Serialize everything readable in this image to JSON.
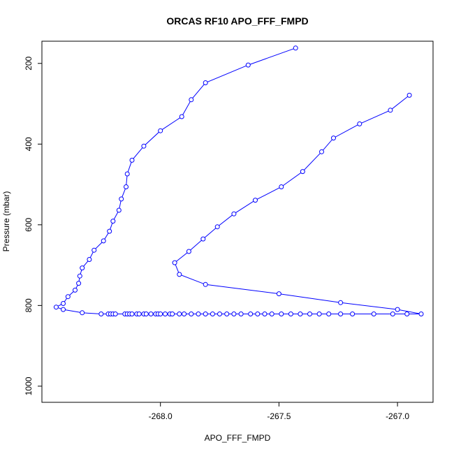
{
  "chart_data": {
    "type": "line",
    "title": "ORCAS RF10 APO_FFF_FMPD",
    "xlabel": "APO_FFF_FMPD",
    "ylabel": "Pressure (mbar)",
    "xlim": [
      -268.5,
      -266.85
    ],
    "ylim": [
      1040,
      145
    ],
    "y_reversed": true,
    "x_ticks": [
      -268.0,
      -267.5,
      -267.0
    ],
    "x_tick_labels": [
      "-268.0",
      "-267.5",
      "-267.0"
    ],
    "y_ticks": [
      200,
      400,
      600,
      800,
      1000
    ],
    "y_tick_labels": [
      "200",
      "400",
      "600",
      "800",
      "1000"
    ],
    "grid": false,
    "series": [
      {
        "color": "#0000ff",
        "marker": "open-circle",
        "x": [
          -267.43,
          -267.63,
          -267.81,
          -267.87,
          -267.91,
          -268.0,
          -268.07,
          -268.12,
          -268.14,
          -268.145,
          -268.165,
          -268.175,
          -268.2,
          -268.215,
          -268.24,
          -268.28,
          -268.3,
          -268.33,
          -268.34,
          -268.345,
          -268.36,
          -268.39,
          -268.41,
          -268.44,
          -268.41,
          -268.33,
          -268.25,
          -268.22,
          -268.21,
          -268.2,
          -268.19,
          -268.15,
          -268.14,
          -268.13,
          -268.12,
          -268.1,
          -268.09,
          -268.07,
          -268.06,
          -268.04,
          -268.02,
          -268.01,
          -268.0,
          -267.98,
          -267.96,
          -267.95,
          -267.92,
          -267.9,
          -267.87,
          -267.84,
          -267.81,
          -267.78,
          -267.75,
          -267.72,
          -267.69,
          -267.66,
          -267.62,
          -267.59,
          -267.56,
          -267.53,
          -267.49,
          -267.45,
          -267.41,
          -267.37,
          -267.33,
          -267.29,
          -267.24,
          -267.19,
          -267.1,
          -267.02,
          -266.96,
          -266.9,
          -267.0,
          -267.24,
          -267.5,
          -267.81,
          -267.92,
          -267.94,
          -267.88,
          -267.82,
          -267.76,
          -267.69,
          -267.6,
          -267.49,
          -267.4,
          -267.32,
          -267.27,
          -267.16,
          -267.03,
          -266.95
        ],
        "y": [
          162,
          204,
          248,
          290,
          332,
          367,
          405,
          440,
          474,
          506,
          536,
          564,
          591,
          616,
          640,
          663,
          686,
          707,
          727,
          745,
          762,
          778,
          795,
          804,
          810,
          818,
          821,
          821,
          821,
          821,
          821,
          821,
          821,
          821,
          821,
          821,
          821,
          821,
          821,
          821,
          821,
          821,
          821,
          821,
          821,
          821,
          821,
          821,
          821,
          821,
          821,
          821,
          821,
          821,
          821,
          821,
          821,
          821,
          821,
          821,
          821,
          821,
          821,
          821,
          821,
          821,
          821,
          821,
          821,
          821,
          821,
          821,
          810,
          793,
          771,
          748,
          723,
          694,
          666,
          635,
          605,
          573,
          539,
          506,
          468,
          419,
          385,
          350,
          316,
          279
        ]
      }
    ]
  }
}
